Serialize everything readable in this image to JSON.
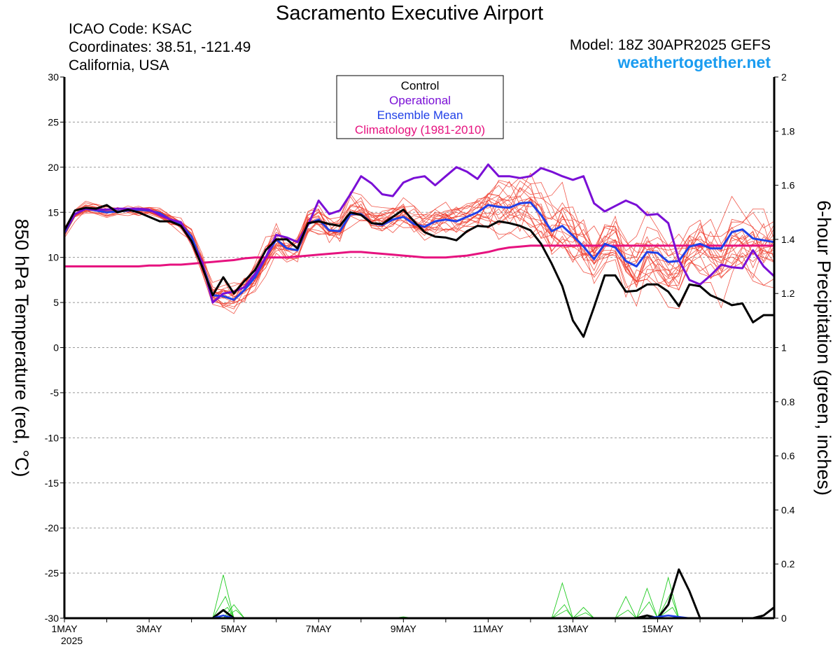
{
  "header": {
    "title": "Sacramento Executive Airport",
    "icao": "ICAO Code: KSAC",
    "coords": "Coordinates: 38.51, -121.49",
    "region": "California, USA",
    "model": "Model: 18Z 30APR2025 GEFS",
    "site": "weathertogether.net"
  },
  "colors": {
    "control": "#000000",
    "operational": "#7a0fd6",
    "mean": "#2040e8",
    "climo": "#e6127f",
    "members": "#ee3b2b",
    "precip_members": "#22cc22",
    "site": "#1a9cf0",
    "grid": "#999999"
  },
  "chart_data": {
    "type": "line",
    "xlabel": "",
    "ylabel": "850 hPa Temperature (red, °C)",
    "y2label": "6-hour Precipitation (green, inches)",
    "xlim": [
      0,
      16.75
    ],
    "ylim": [
      -30,
      30
    ],
    "y2lim": [
      0,
      2
    ],
    "x_ticks": [
      {
        "x": 0,
        "label": "1MAY",
        "sub": "2025"
      },
      {
        "x": 2,
        "label": "3MAY",
        "sub": ""
      },
      {
        "x": 4,
        "label": "5MAY",
        "sub": ""
      },
      {
        "x": 6,
        "label": "7MAY",
        "sub": ""
      },
      {
        "x": 8,
        "label": "9MAY",
        "sub": ""
      },
      {
        "x": 10,
        "label": "11MAY",
        "sub": ""
      },
      {
        "x": 12,
        "label": "13MAY",
        "sub": ""
      },
      {
        "x": 14,
        "label": "15MAY",
        "sub": ""
      }
    ],
    "y_ticks": [
      30,
      25,
      20,
      15,
      10,
      5,
      0,
      -5,
      -10,
      -15,
      -20,
      -25,
      -30
    ],
    "y2_ticks": [
      "2",
      "1.8",
      "1.6",
      "1.4",
      "1.2",
      "1",
      "0.8",
      "0.6",
      "0.4",
      "0.2",
      "0"
    ],
    "grid": true,
    "legend": {
      "placement": "top-center",
      "entries": [
        "Control",
        "Operational",
        "Ensemble Mean",
        "Climatology (1981-2010)"
      ]
    },
    "x_step_days": 0.25,
    "series": [
      {
        "name": "Climatology (1981-2010)",
        "role": "climo",
        "values": [
          9.0,
          9.0,
          9.0,
          9.0,
          9.0,
          9.0,
          9.0,
          9.0,
          9.1,
          9.1,
          9.2,
          9.2,
          9.3,
          9.4,
          9.5,
          9.6,
          9.7,
          9.9,
          10.0,
          10.0,
          10.0,
          10.0,
          10.1,
          10.2,
          10.3,
          10.4,
          10.5,
          10.6,
          10.6,
          10.5,
          10.4,
          10.3,
          10.2,
          10.1,
          10.0,
          10.0,
          10.0,
          10.1,
          10.2,
          10.4,
          10.6,
          10.9,
          11.1,
          11.2,
          11.3,
          11.3,
          11.3,
          11.3,
          11.3,
          11.3,
          11.3,
          11.3,
          11.3,
          11.3,
          11.3,
          11.3,
          11.3,
          11.3,
          11.3,
          11.3,
          11.3,
          11.3,
          11.3,
          11.3,
          11.3,
          11.3,
          11.3,
          11.3
        ]
      },
      {
        "name": "Ensemble Mean",
        "role": "mean",
        "values": [
          12.7,
          14.8,
          15.4,
          15.2,
          15.0,
          15.1,
          15.2,
          15.3,
          15.2,
          14.9,
          14.2,
          13.7,
          12.3,
          9.4,
          5.8,
          5.7,
          5.3,
          6.4,
          7.8,
          10.0,
          12.0,
          11.0,
          10.8,
          13.7,
          14.2,
          13.0,
          12.9,
          14.8,
          14.8,
          13.8,
          13.6,
          14.2,
          14.5,
          13.7,
          13.4,
          14.0,
          14.2,
          14.0,
          14.5,
          15.0,
          15.8,
          15.6,
          15.5,
          16.0,
          16.1,
          14.7,
          12.9,
          13.5,
          12.4,
          11.2,
          9.8,
          11.5,
          11.1,
          9.6,
          9.0,
          10.6,
          10.5,
          9.5,
          9.6,
          11.2,
          11.5,
          11.0,
          11.0,
          12.8,
          13.1,
          12.1,
          11.9,
          11.7
        ]
      },
      {
        "name": "Operational",
        "role": "operational",
        "values": [
          12.9,
          14.8,
          15.4,
          15.3,
          15.3,
          15.4,
          15.4,
          15.4,
          15.3,
          14.7,
          14.2,
          13.9,
          11.7,
          9.5,
          5.0,
          6.0,
          6.2,
          6.7,
          8.2,
          10.0,
          12.5,
          12.2,
          11.7,
          13.6,
          16.3,
          14.8,
          15.2,
          17.0,
          19.0,
          18.2,
          17.0,
          16.8,
          18.3,
          18.8,
          19.0,
          18.0,
          19.0,
          20.0,
          19.5,
          18.7,
          20.3,
          19.0,
          19.0,
          18.8,
          19.0,
          19.9,
          19.5,
          19.0,
          18.6,
          19.0,
          16.0,
          15.1,
          15.7,
          16.3,
          15.8,
          14.7,
          14.8,
          13.8,
          9.7,
          7.5,
          7.0,
          8.0,
          9.2,
          8.9,
          8.8,
          10.8,
          9.0,
          7.9
        ]
      },
      {
        "name": "Control",
        "role": "control",
        "values": [
          13.0,
          15.2,
          15.5,
          15.4,
          15.8,
          15.0,
          15.3,
          15.0,
          14.5,
          14.0,
          14.0,
          13.5,
          11.8,
          9.0,
          5.8,
          7.8,
          6.0,
          7.4,
          8.6,
          10.8,
          12.0,
          12.0,
          11.0,
          13.8,
          14.0,
          13.7,
          13.5,
          15.0,
          14.7,
          13.8,
          13.7,
          14.5,
          15.3,
          14.0,
          12.8,
          12.3,
          12.2,
          11.9,
          12.9,
          13.5,
          13.4,
          14.0,
          13.8,
          13.5,
          13.0,
          11.5,
          9.3,
          6.8,
          3.0,
          1.2,
          4.5,
          8.0,
          8.0,
          6.2,
          6.3,
          7.0,
          7.0,
          6.2,
          4.6,
          7.0,
          6.8,
          5.8,
          5.3,
          4.7,
          4.9,
          2.8,
          3.6,
          3.6
        ]
      },
      {
        "name": "Control precipitation",
        "role": "control_precip",
        "values": [
          0,
          0,
          0,
          0,
          0,
          0,
          0,
          0,
          0,
          0,
          0,
          0,
          0,
          0,
          0,
          0.03,
          0,
          0,
          0,
          0,
          0,
          0,
          0,
          0,
          0,
          0,
          0,
          0,
          0,
          0,
          0,
          0,
          0,
          0,
          0,
          0,
          0,
          0,
          0,
          0,
          0,
          0,
          0,
          0,
          0,
          0,
          0,
          0,
          0,
          0,
          0,
          0,
          0,
          0,
          0,
          0.01,
          0,
          0.05,
          0.18,
          0.1,
          0,
          0,
          0,
          0,
          0,
          0,
          0.01,
          0.04
        ]
      },
      {
        "name": "Ensemble mean precipitation",
        "role": "mean_precip",
        "values": [
          0,
          0,
          0,
          0,
          0,
          0,
          0,
          0,
          0,
          0,
          0,
          0,
          0,
          0,
          0,
          0.01,
          0,
          0,
          0,
          0,
          0,
          0,
          0,
          0,
          0,
          0,
          0,
          0,
          0,
          0,
          0,
          0,
          0,
          0,
          0,
          0,
          0,
          0,
          0,
          0,
          0,
          0,
          0,
          0,
          0,
          0,
          0,
          0,
          0,
          0,
          0,
          0,
          0,
          0,
          0,
          0,
          0.005,
          0.01,
          0.005,
          0,
          0,
          0,
          0,
          0,
          0,
          0,
          0,
          0
        ]
      }
    ],
    "ensemble_members": {
      "seeds": [
        3,
        7,
        11,
        17,
        23,
        29,
        31,
        37,
        41,
        43,
        47,
        53,
        59,
        61,
        67,
        71,
        73,
        79,
        83,
        89
      ],
      "temperature_spread": "members scatter around the ensemble mean, roughly +/-1 to +/-2 C early, up to +/-5 C after 11MAY",
      "precip_peaks": [
        {
          "x": 3.75,
          "values": [
            0.16,
            0.08,
            0.04
          ]
        },
        {
          "x": 4.0,
          "values": [
            0.05,
            0.03
          ]
        },
        {
          "x": 11.75,
          "values": [
            0.13,
            0.05,
            0.03
          ]
        },
        {
          "x": 13.25,
          "values": [
            0.08,
            0.03
          ]
        },
        {
          "x": 13.75,
          "values": [
            0.11,
            0.06
          ]
        },
        {
          "x": 14.25,
          "values": [
            0.15,
            0.09,
            0.04
          ]
        },
        {
          "x": 12.25,
          "values": [
            0.04,
            0.02
          ]
        },
        {
          "x": 8.0,
          "values": [
            0.005
          ]
        }
      ]
    }
  }
}
